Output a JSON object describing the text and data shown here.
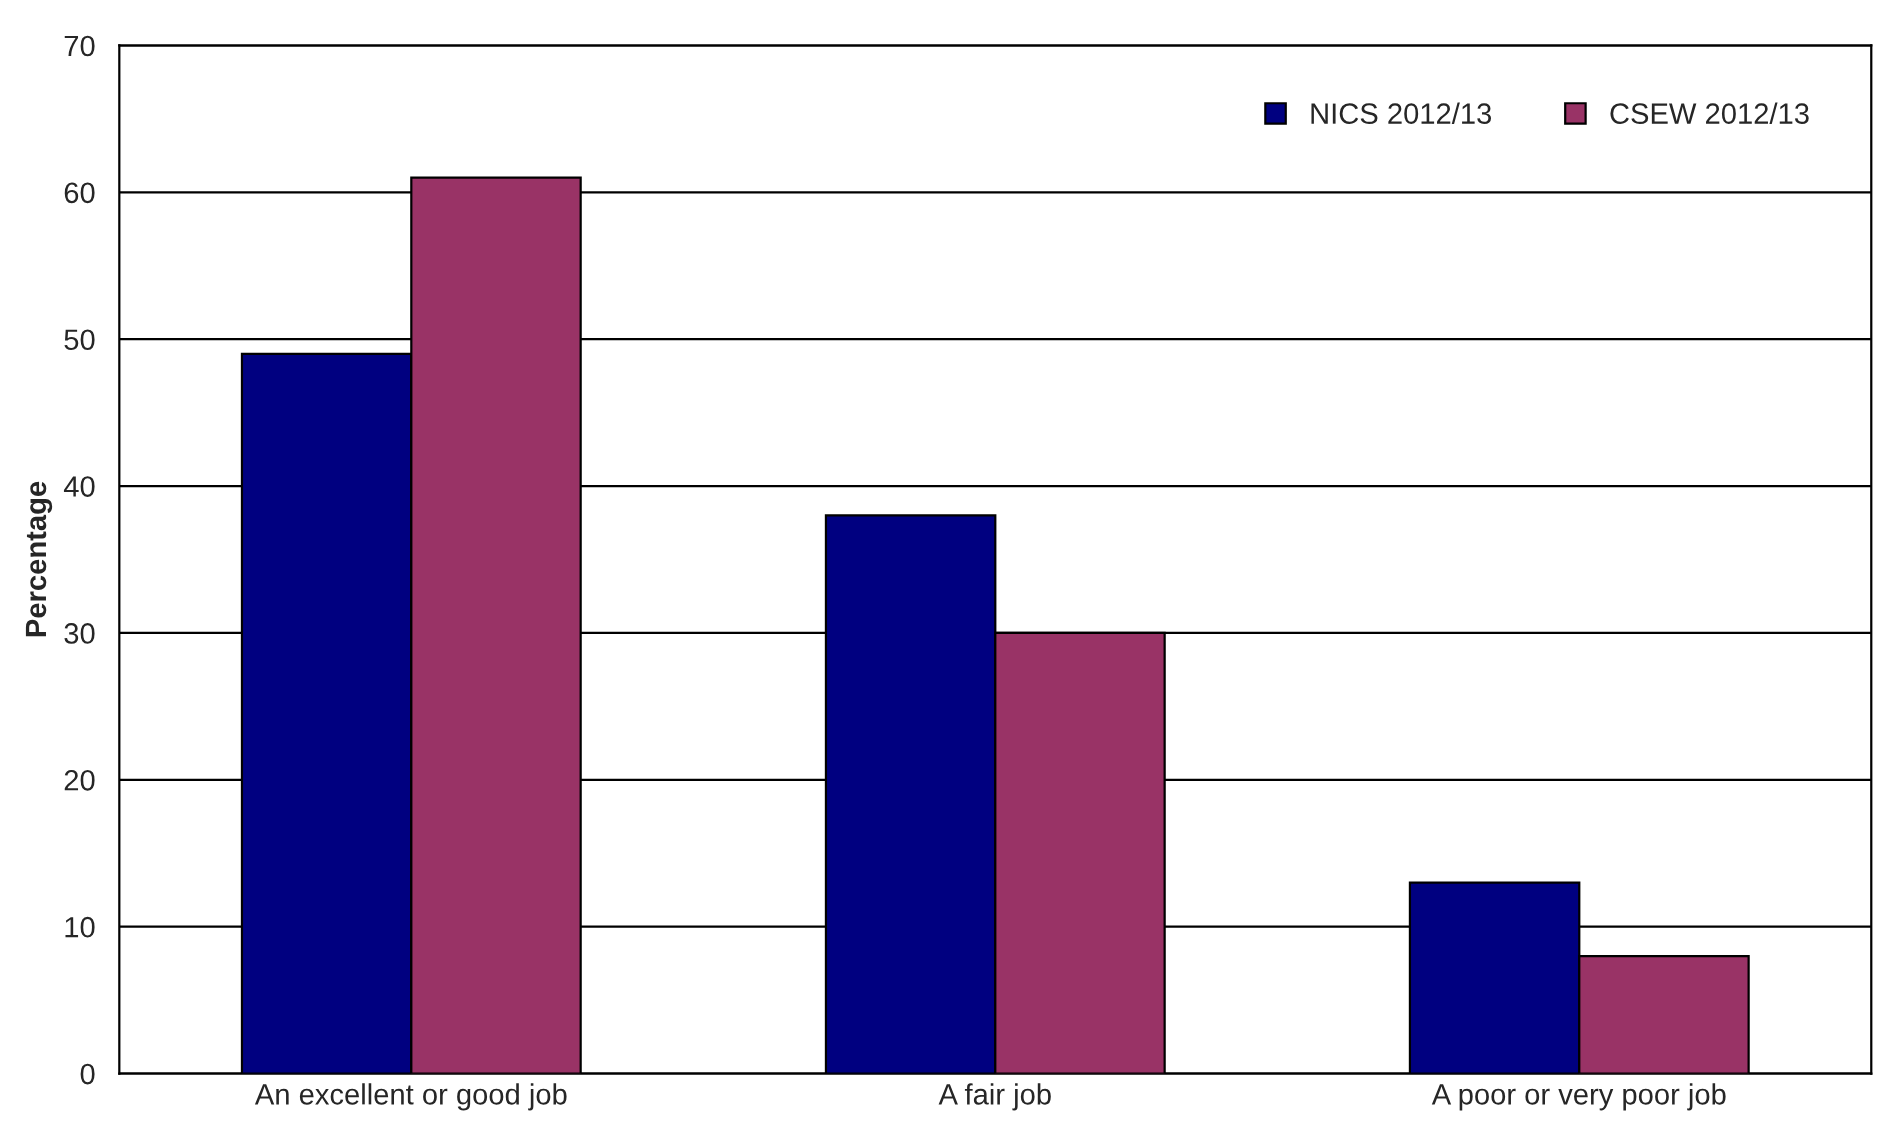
{
  "chart_data": {
    "type": "bar",
    "ylabel": "Percentage",
    "categories": [
      "An excellent or good job",
      "A fair job",
      "A poor or very poor job"
    ],
    "series": [
      {
        "name": "NICS 2012/13",
        "color": "#000080",
        "values": [
          49,
          38,
          13
        ]
      },
      {
        "name": "CSEW 2012/13",
        "color": "#993366",
        "values": [
          61,
          30,
          8
        ]
      }
    ],
    "ylim": [
      0,
      70
    ],
    "yticks": [
      0,
      10,
      20,
      30,
      40,
      50,
      60,
      70
    ],
    "grid": "y",
    "legend": "top right"
  }
}
